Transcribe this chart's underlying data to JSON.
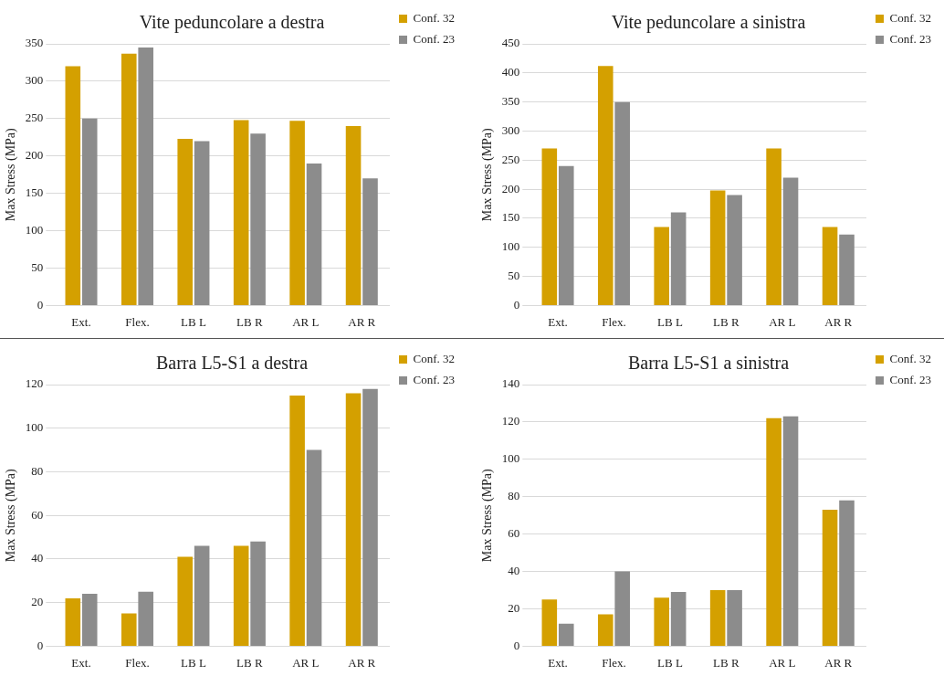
{
  "chart_data": [
    {
      "type": "bar",
      "title": "Vite peduncolare a destra",
      "ylabel": "Max Stress (MPa)",
      "categories": [
        "Ext.",
        "Flex.",
        "LB L",
        "LB R",
        "AR L",
        "AR R"
      ],
      "series": [
        {
          "name": "Conf. 32",
          "color": "#d4a000",
          "values": [
            320,
            337,
            223,
            248,
            247,
            240
          ]
        },
        {
          "name": "Conf. 23",
          "color": "#8c8c8c",
          "values": [
            250,
            345,
            220,
            230,
            190,
            170
          ]
        }
      ],
      "ylim": [
        0,
        350
      ],
      "yticks": [
        0,
        50,
        100,
        150,
        200,
        250,
        300,
        350
      ],
      "grid": "y",
      "legend": "top right"
    },
    {
      "type": "bar",
      "title": "Vite peduncolare a sinistra",
      "ylabel": "Max Stress (MPa)",
      "categories": [
        "Ext.",
        "Flex.",
        "LB L",
        "LB R",
        "AR L",
        "AR R"
      ],
      "series": [
        {
          "name": "Conf. 32",
          "color": "#d4a000",
          "values": [
            270,
            412,
            135,
            198,
            270,
            135
          ]
        },
        {
          "name": "Conf. 23",
          "color": "#8c8c8c",
          "values": [
            240,
            350,
            160,
            190,
            220,
            122
          ]
        }
      ],
      "ylim": [
        0,
        450
      ],
      "yticks": [
        0,
        50,
        100,
        150,
        200,
        250,
        300,
        350,
        400,
        450
      ],
      "grid": "y",
      "legend": "top right"
    },
    {
      "type": "bar",
      "title": "Barra L5-S1 a destra",
      "ylabel": "Max Stress (MPa)",
      "categories": [
        "Ext.",
        "Flex.",
        "LB L",
        "LB R",
        "AR L",
        "AR R"
      ],
      "series": [
        {
          "name": "Conf. 32",
          "color": "#d4a000",
          "values": [
            22,
            15,
            41,
            46,
            115,
            116
          ]
        },
        {
          "name": "Conf. 23",
          "color": "#8c8c8c",
          "values": [
            24,
            25,
            46,
            48,
            90,
            118
          ]
        }
      ],
      "ylim": [
        0,
        120
      ],
      "yticks": [
        0,
        20,
        40,
        60,
        80,
        100,
        120
      ],
      "grid": "y",
      "legend": "top right"
    },
    {
      "type": "bar",
      "title": "Barra L5-S1 a sinistra",
      "ylabel": "Max Stress (MPa)",
      "categories": [
        "Ext.",
        "Flex.",
        "LB L",
        "LB R",
        "AR L",
        "AR R"
      ],
      "series": [
        {
          "name": "Conf. 32",
          "color": "#d4a000",
          "values": [
            25,
            17,
            26,
            30,
            122,
            73
          ]
        },
        {
          "name": "Conf. 23",
          "color": "#8c8c8c",
          "values": [
            12,
            40,
            29,
            30,
            123,
            78
          ]
        }
      ],
      "ylim": [
        0,
        140
      ],
      "yticks": [
        0,
        20,
        40,
        60,
        80,
        100,
        120,
        140
      ],
      "grid": "y",
      "legend": "top right"
    }
  ]
}
